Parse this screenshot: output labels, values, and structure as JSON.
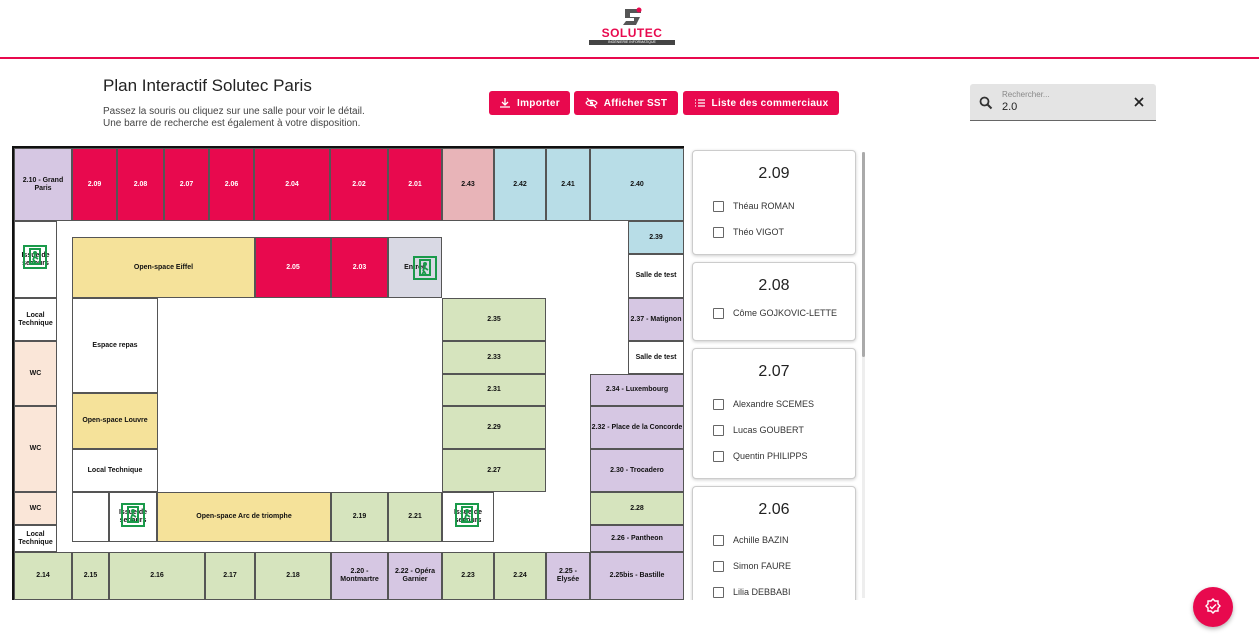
{
  "header": {
    "brand": "SOLUTEC",
    "brand_tagline": "INGÉNIERIE INFORMATIQUE",
    "accent": "#e8094e"
  },
  "page": {
    "title": "Plan Interactif Solutec Paris",
    "subtitle_line1": "Passez la souris ou cliquez sur une salle pour voir le détail.",
    "subtitle_line2": "Une barre de recherche est également à votre disposition."
  },
  "toolbar": {
    "import_label": "Importer",
    "sst_label": "Afficher SST",
    "commercials_label": "Liste des commerciaux"
  },
  "search": {
    "placeholder": "Rechercher...",
    "value": "2.0"
  },
  "rooms": {
    "r2_10": "2.10 - Grand Paris",
    "r2_09": "2.09",
    "r2_08": "2.08",
    "r2_07": "2.07",
    "r2_06": "2.06",
    "r2_04": "2.04",
    "r2_02": "2.02",
    "r2_01": "2.01",
    "r2_43": "2.43",
    "r2_42": "2.42",
    "r2_41": "2.41",
    "r2_40": "2.40",
    "r2_39": "2.39",
    "exit_left": "Issue de secours",
    "open_eiffel": "Open-space Eiffel",
    "r2_05": "2.05",
    "r2_03": "2.03",
    "entree": "Entrée",
    "salle_test1": "Salle de test",
    "local_tech1": "Local Technique",
    "espace_repas": "Espace repas",
    "r2_35": "2.35",
    "r2_37": "2.37 - Matignon",
    "r2_33": "2.33",
    "salle_test2": "Salle de test",
    "wc1": "WC",
    "r2_31": "2.31",
    "r2_34": "2.34 - Luxembourg",
    "open_louvre": "Open-space Louvre",
    "r2_29": "2.29",
    "r2_32": "2.32 - Place de la Concorde",
    "wc2": "WC",
    "local_tech2": "Local Technique",
    "r2_27": "2.27",
    "r2_30": "2.30 - Trocadero",
    "wc3": "WC",
    "exit_mid": "Issue de secours",
    "open_arc": "Open-space Arc de triomphe",
    "r2_19": "2.19",
    "r2_21": "2.21",
    "exit_right": "Issue de secours",
    "r2_28": "2.28",
    "local_tech3": "Local Technique",
    "r2_26": "2.26 - Pantheon",
    "r2_14": "2.14",
    "r2_15": "2.15",
    "r2_16": "2.16",
    "r2_17": "2.17",
    "r2_18": "2.18",
    "r2_20": "2.20 - Montmartre",
    "r2_22": "2.22 - Opéra Garnier",
    "r2_23": "2.23",
    "r2_24": "2.24",
    "r2_25": "2.25 - Elysée",
    "r2_25bis": "2.25bis - Bastille"
  },
  "results": [
    {
      "room": "2.09",
      "people": [
        "Théau ROMAN",
        "Théo VIGOT"
      ]
    },
    {
      "room": "2.08",
      "people": [
        "Côme GOJKOVIC-LETTE"
      ]
    },
    {
      "room": "2.07",
      "people": [
        "Alexandre SCEMES",
        "Lucas GOUBERT",
        "Quentin PHILIPPS"
      ]
    },
    {
      "room": "2.06",
      "people": [
        "Achille BAZIN",
        "Simon FAURE",
        "Lilia DEBBABI"
      ]
    }
  ]
}
